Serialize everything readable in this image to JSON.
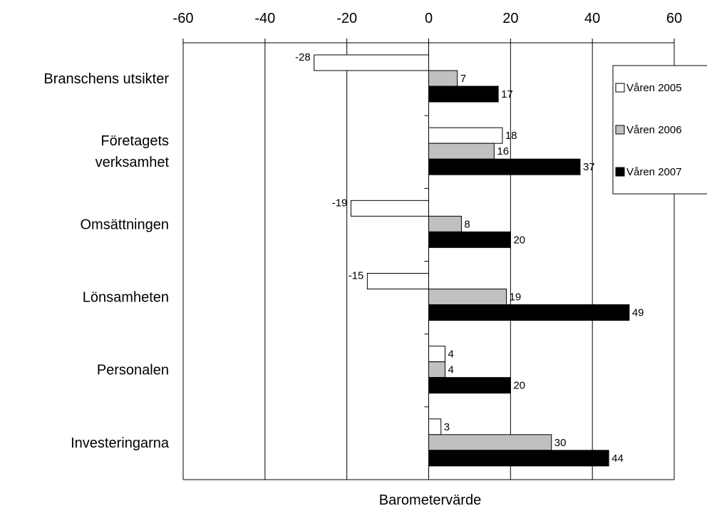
{
  "chart_data": {
    "type": "bar",
    "orientation": "horizontal",
    "categories": [
      "Branschens utsikter",
      "Företagets\nverksamhet",
      "Omsättningen",
      "Lönsamheten",
      "Personalen",
      "Investeringarna"
    ],
    "series": [
      {
        "name": "Våren 2005",
        "color": "#ffffff",
        "values": [
          -28,
          18,
          -19,
          -15,
          4,
          3
        ]
      },
      {
        "name": "Våren 2006",
        "color": "#c0c0c0",
        "values": [
          7,
          16,
          8,
          19,
          4,
          30
        ]
      },
      {
        "name": "Våren 2007",
        "color": "#000000",
        "values": [
          17,
          37,
          20,
          49,
          20,
          44
        ]
      }
    ],
    "xlim": [
      -60,
      60
    ],
    "xticks": [
      -60,
      -40,
      -20,
      0,
      20,
      40,
      60
    ],
    "xlabel": "Barometervärde",
    "ylabel": "",
    "title": "",
    "x_axis_position": "top",
    "grid": "vertical",
    "legend_position": "right"
  }
}
